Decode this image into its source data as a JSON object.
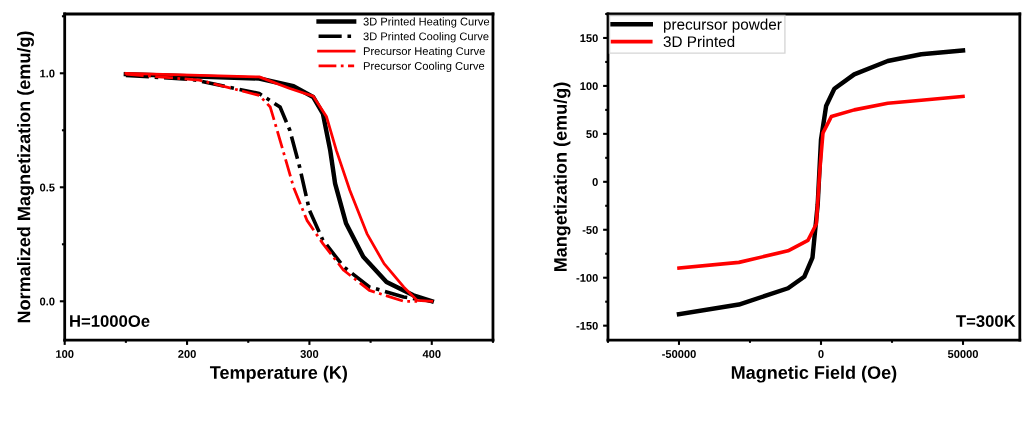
{
  "chart_data": [
    {
      "type": "line",
      "xlabel": "Temperature (K)",
      "ylabel": "Normalized Magnetization (emu/g)",
      "annotations": [
        "H=1000Oe"
      ],
      "xlim": [
        100,
        450
      ],
      "ylim": [
        -0.17,
        1.26
      ],
      "xticks": [
        100,
        200,
        300,
        400
      ],
      "yticks": [
        {
          "value": 0,
          "label": "0.0"
        },
        {
          "value": 0.5,
          "label": "0.5"
        },
        {
          "value": 1,
          "label": "1.0"
        }
      ],
      "legend": "top right",
      "grid": false,
      "series": [
        {
          "name": "3D Printed Heating Curve",
          "color": "#000000",
          "line_style": "solid",
          "x": [
            150,
            259,
            287,
            303,
            311,
            317,
            321,
            330,
            344,
            363,
            385,
            400
          ],
          "values": [
            0.996,
            0.977,
            0.943,
            0.896,
            0.823,
            0.662,
            0.516,
            0.341,
            0.195,
            0.085,
            0.026,
            0.0
          ]
        },
        {
          "name": "3D Printed Cooling Curve",
          "color": "#000000",
          "line_style": "dashdot",
          "x": [
            150,
            205,
            259,
            276,
            284,
            292,
            300,
            311,
            328,
            349,
            377,
            400
          ],
          "values": [
            0.991,
            0.972,
            0.911,
            0.852,
            0.75,
            0.589,
            0.399,
            0.268,
            0.151,
            0.063,
            0.019,
            0.0
          ]
        },
        {
          "name": "Precursor Heating Curve",
          "color": "#ff0000",
          "line_style": "solid",
          "x": [
            150,
            259,
            284,
            303,
            314,
            322,
            333,
            347,
            361,
            377,
            388,
            400
          ],
          "values": [
            1.0,
            0.984,
            0.933,
            0.9,
            0.809,
            0.662,
            0.487,
            0.297,
            0.165,
            0.063,
            0.004,
            0.0
          ]
        },
        {
          "name": "Precursor Cooling Curve",
          "color": "#ff0000",
          "line_style": "dashdot",
          "x": [
            150,
            210,
            259,
            268,
            276,
            287,
            298,
            311,
            328,
            349,
            377,
            388
          ],
          "values": [
            0.996,
            0.97,
            0.903,
            0.852,
            0.706,
            0.501,
            0.355,
            0.253,
            0.136,
            0.048,
            0.0,
            0.0
          ]
        }
      ]
    },
    {
      "type": "line",
      "xlabel": "Magnetic Field (Oe)",
      "ylabel": "Mangetization (emu/g)",
      "annotations": [
        "T=300K"
      ],
      "xlim": [
        -75000,
        70000
      ],
      "ylim": [
        -165,
        175
      ],
      "xticks": [
        -50000,
        0,
        50000
      ],
      "yticks": [
        -150,
        -100,
        -50,
        0,
        50,
        100,
        150
      ],
      "legend": "top left",
      "grid": false,
      "series": [
        {
          "name": "precursor powder",
          "color": "#000000",
          "line_style": "solid",
          "x": [
            -50000,
            -28900,
            -11600,
            -5900,
            -3000,
            -1170,
            0,
            1800,
            4700,
            11700,
            23500,
            35300,
            50000
          ],
          "values": [
            -138,
            -128,
            -111,
            -99,
            -79,
            -24,
            44,
            79,
            97,
            112,
            126,
            133,
            137
          ]
        },
        {
          "name": "3D Printed",
          "color": "#ff0000",
          "line_style": "solid",
          "x": [
            -50000,
            -28900,
            -11600,
            -4600,
            -1650,
            -470,
            700,
            3640,
            11700,
            23500,
            35300,
            50000
          ],
          "values": [
            -90,
            -84,
            -72,
            -61,
            -44,
            10,
            51,
            68,
            75,
            82,
            85,
            89
          ]
        }
      ]
    }
  ]
}
